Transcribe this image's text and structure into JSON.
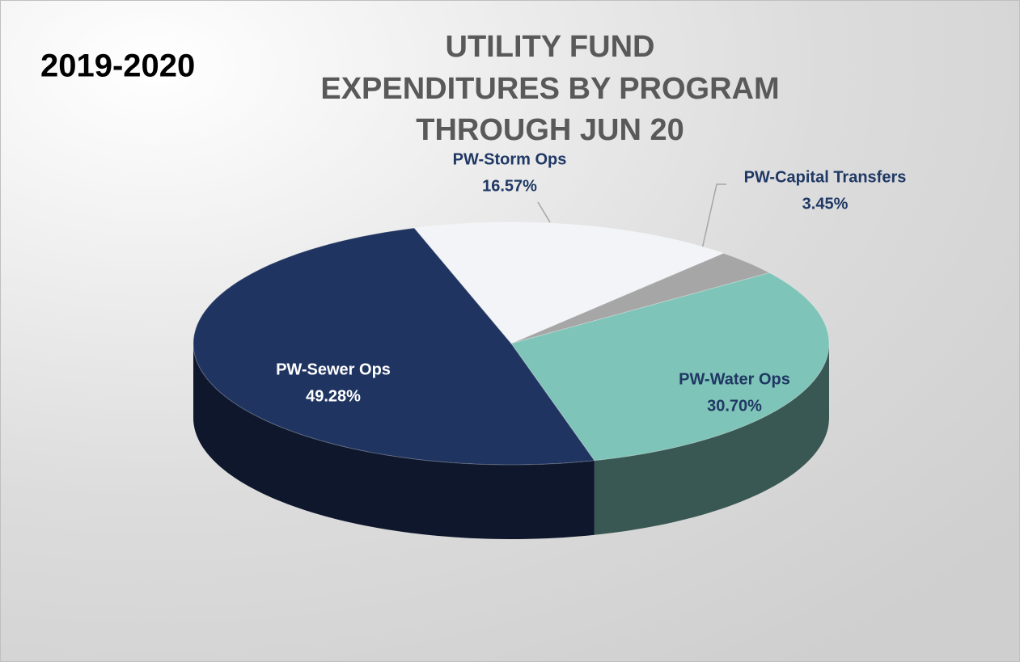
{
  "chart_data": {
    "type": "pie",
    "title": [
      "UTILITY FUND",
      "EXPENDITURES BY PROGRAM",
      "THROUGH JUN 20"
    ],
    "annotation": "2019-2020",
    "categories": [
      "PW-Storm Ops",
      "PW-Capital Transfers",
      "PW-Water Ops",
      "PW-Sewer Ops"
    ],
    "values": [
      16.57,
      3.45,
      30.7,
      49.28
    ],
    "value_labels": [
      "16.57%",
      "3.45%",
      "30.70%",
      "49.28%"
    ],
    "colors": [
      "#f2f4f8",
      "#a6a6a6",
      "#7fc4b8",
      "#1f3460"
    ]
  }
}
